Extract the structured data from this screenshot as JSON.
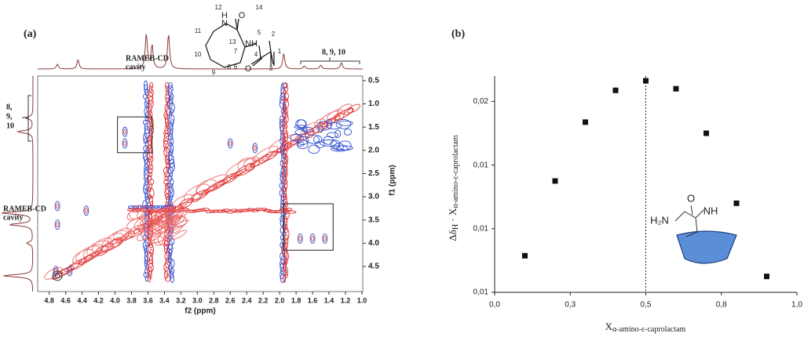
{
  "chart_data": [
    {
      "type": "contour",
      "label": "(a)",
      "xlabel": "f2 (ppm)",
      "ylabel": "f1 (ppm)",
      "xlim": [
        4.94,
        0.99
      ],
      "ylim": [
        0.4,
        5.04
      ],
      "xticks": [
        4.8,
        4.6,
        4.4,
        4.2,
        {
          "value": 4,
          "label": "4.0"
        },
        3.8,
        3.6,
        3.4,
        3.2,
        {
          "value": 3,
          "label": "3.0"
        },
        2.8,
        2.6,
        2.4,
        2.2,
        {
          "value": 2,
          "label": "2.0"
        },
        1.8,
        1.6,
        1.4,
        1.2,
        {
          "value": 1,
          "label": "1.0"
        }
      ],
      "yticks": [
        0.5,
        {
          "value": 1,
          "label": "1.0"
        },
        1.5,
        {
          "value": 2,
          "label": "2.0"
        },
        2.5,
        {
          "value": 3,
          "label": "3.0"
        },
        3.5,
        {
          "value": 4,
          "label": "4.0"
        },
        4.5
      ],
      "annotations": [
        "RAMEB-CD",
        "cavity",
        "8, 9, 10",
        "RAMEB-CD",
        "cavity",
        "8,",
        "9,",
        "10"
      ],
      "molecule_labels": [
        "12",
        "14",
        "N",
        "H",
        "O",
        "11",
        "13",
        "5",
        "2",
        "7",
        "NH",
        "10",
        "9",
        "8",
        "O",
        "6",
        "3",
        "1",
        "4"
      ]
    },
    {
      "type": "scatter",
      "label": "(b)",
      "xlabel_parts": [
        "X",
        "α-amino-ε-caprolactam"
      ],
      "ylabel_parts": [
        "Δδ",
        "H",
        " · X",
        "α-amino-ε-caprolactam"
      ],
      "x": [
        0.1,
        0.2,
        0.3,
        0.4,
        0.5,
        0.6,
        0.7,
        0.8,
        0.9
      ],
      "values": [
        0.0083,
        0.013,
        0.0167,
        0.0187,
        0.0193,
        0.0188,
        0.016,
        0.0116,
        0.007
      ],
      "color": "#111111",
      "vline": 0.5,
      "xlim": [
        0,
        1
      ],
      "xticks": [
        {
          "value": 0,
          "label": "0,0"
        },
        {
          "value": 0.25,
          "label": "0,3"
        },
        {
          "value": 0.5,
          "label": "0,5"
        },
        {
          "value": 0.75,
          "label": "0,8"
        },
        {
          "value": 1,
          "label": "1,0"
        }
      ],
      "ylim": [
        0.006,
        0.0196
      ],
      "yticks": [
        {
          "value": 0.006,
          "label": "0,01"
        },
        {
          "value": 0.01,
          "label": "0,01"
        },
        {
          "value": 0.014,
          "label": "0,01"
        },
        {
          "value": 0.018,
          "label": "0,02"
        }
      ],
      "inset_labels": [
        "H₂N",
        "O",
        "NH"
      ]
    }
  ]
}
